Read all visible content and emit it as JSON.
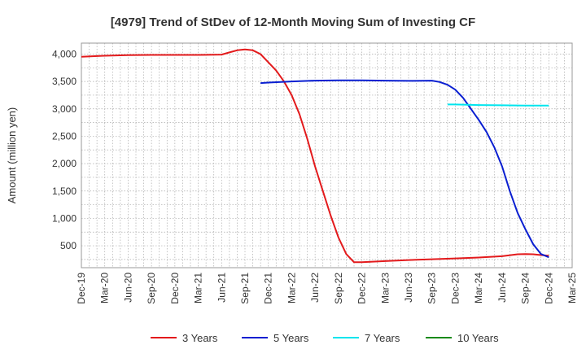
{
  "chart_data": {
    "type": "line",
    "title": "[4979]  Trend of StDev of 12-Month Moving Sum of Investing CF",
    "xlabel": "",
    "ylabel": "Amount (million yen)",
    "ylim": [
      100,
      4200
    ],
    "y_ticks": [
      500,
      1000,
      1500,
      2000,
      2500,
      3000,
      3500,
      4000
    ],
    "y_tick_labels": [
      "500",
      "1,000",
      "1,500",
      "2,000",
      "2,500",
      "3,000",
      "3,500",
      "4,000"
    ],
    "x_tick_labels": [
      "Dec-19",
      "Mar-20",
      "Jun-20",
      "Sep-20",
      "Dec-20",
      "Mar-21",
      "Jun-21",
      "Sep-21",
      "Dec-21",
      "Mar-22",
      "Jun-22",
      "Sep-22",
      "Dec-22",
      "Mar-23",
      "Jun-23",
      "Sep-23",
      "Dec-23",
      "Mar-24",
      "Jun-24",
      "Sep-24",
      "Dec-24",
      "Mar-25"
    ],
    "grid": true,
    "legend_position": "bottom",
    "series": [
      {
        "name": "3 Years",
        "color": "#e31a1c",
        "points": [
          [
            "Dec-19",
            3950
          ],
          [
            "Mar-20",
            3970
          ],
          [
            "Jun-20",
            3980
          ],
          [
            "Sep-20",
            3985
          ],
          [
            "Dec-20",
            3985
          ],
          [
            "Mar-21",
            3985
          ],
          [
            "Jun-21",
            3990
          ],
          [
            "Jul-21",
            4030
          ],
          [
            "Aug-21",
            4070
          ],
          [
            "Sep-21",
            4085
          ],
          [
            "Oct-21",
            4070
          ],
          [
            "Nov-21",
            4000
          ],
          [
            "Dec-21",
            3850
          ],
          [
            "Jan-22",
            3700
          ],
          [
            "Feb-22",
            3500
          ],
          [
            "Mar-22",
            3250
          ],
          [
            "Apr-22",
            2900
          ],
          [
            "May-22",
            2450
          ],
          [
            "Jun-22",
            1950
          ],
          [
            "Jul-22",
            1500
          ],
          [
            "Aug-22",
            1050
          ],
          [
            "Sep-22",
            650
          ],
          [
            "Oct-22",
            350
          ],
          [
            "Nov-22",
            200
          ],
          [
            "Dec-22",
            200
          ],
          [
            "Mar-23",
            220
          ],
          [
            "Jun-23",
            240
          ],
          [
            "Sep-23",
            255
          ],
          [
            "Dec-23",
            270
          ],
          [
            "Mar-24",
            285
          ],
          [
            "Jun-24",
            310
          ],
          [
            "Aug-24",
            345
          ],
          [
            "Sep-24",
            350
          ],
          [
            "Oct-24",
            345
          ],
          [
            "Nov-24",
            330
          ],
          [
            "Dec-24",
            320
          ]
        ]
      },
      {
        "name": "5 Years",
        "color": "#0a1fd1",
        "points": [
          [
            "Nov-21",
            3470
          ],
          [
            "Dec-21",
            3480
          ],
          [
            "Mar-22",
            3500
          ],
          [
            "Jun-22",
            3515
          ],
          [
            "Sep-22",
            3520
          ],
          [
            "Dec-22",
            3520
          ],
          [
            "Mar-23",
            3515
          ],
          [
            "Jun-23",
            3510
          ],
          [
            "Sep-23",
            3515
          ],
          [
            "Oct-23",
            3490
          ],
          [
            "Nov-23",
            3440
          ],
          [
            "Dec-23",
            3350
          ],
          [
            "Jan-24",
            3200
          ],
          [
            "Feb-24",
            3000
          ],
          [
            "Mar-24",
            2800
          ],
          [
            "Apr-24",
            2580
          ],
          [
            "May-24",
            2300
          ],
          [
            "Jun-24",
            1950
          ],
          [
            "Jul-24",
            1500
          ],
          [
            "Aug-24",
            1100
          ],
          [
            "Sep-24",
            800
          ],
          [
            "Oct-24",
            530
          ],
          [
            "Nov-24",
            350
          ],
          [
            "Dec-24",
            290
          ]
        ]
      },
      {
        "name": "7 Years",
        "color": "#00e5ee",
        "points": [
          [
            "Nov-23",
            3080
          ],
          [
            "Dec-23",
            3080
          ],
          [
            "Mar-24",
            3070
          ],
          [
            "Jun-24",
            3065
          ],
          [
            "Sep-24",
            3060
          ],
          [
            "Dec-24",
            3060
          ]
        ]
      },
      {
        "name": "10 Years",
        "color": "#1a8a1a",
        "points": []
      }
    ]
  }
}
